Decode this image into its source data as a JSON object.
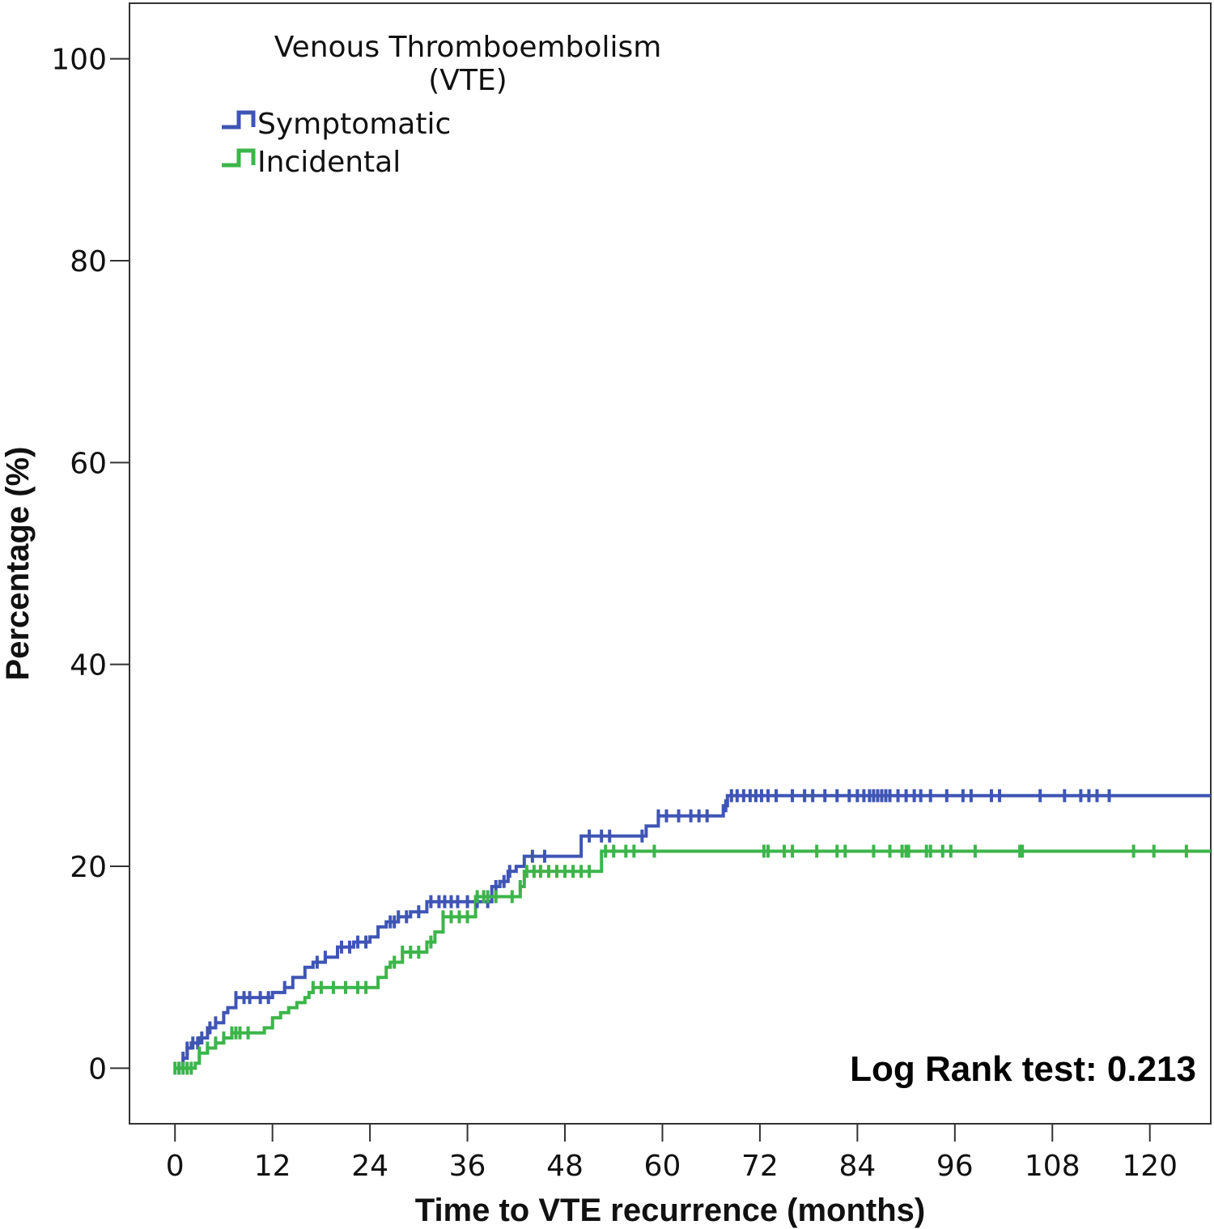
{
  "chart_data": {
    "type": "line",
    "style": "step",
    "title": "",
    "xlabel": "Time to VTE recurrence (months)",
    "ylabel": "Percentage (%)",
    "xlim": [
      -5.6,
      127.5
    ],
    "ylim": [
      -5.5,
      105.5
    ],
    "xticks": [
      0,
      12,
      24,
      36,
      48,
      60,
      72,
      84,
      96,
      108,
      120
    ],
    "yticks": [
      0,
      20,
      40,
      60,
      80,
      100
    ],
    "grid": false,
    "legend": {
      "title_line1": "Venous Thromboembolism",
      "title_line2": "(VTE)",
      "position": "top-left",
      "entries": [
        "Symptomatic",
        "Incidental"
      ]
    },
    "annotation": "Log Rank test: 0.213",
    "series": [
      {
        "name": "Symptomatic",
        "color": "#3f55b5",
        "x": [
          0,
          1,
          1.5,
          2,
          3,
          4,
          5,
          6,
          6.5,
          7.5,
          10,
          12,
          13.5,
          14.5,
          16,
          17,
          18.5,
          20,
          21,
          22,
          24,
          25,
          26,
          27.5,
          29,
          31,
          32,
          38,
          39,
          40,
          41,
          42,
          43,
          48.5,
          50,
          54.5,
          58,
          59.5,
          66.5,
          67.5,
          68,
          127.5
        ],
        "y": [
          0,
          1,
          2,
          2.5,
          3,
          4,
          4.5,
          5.5,
          6,
          7,
          7,
          7.5,
          8,
          9,
          10,
          10.5,
          11,
          12,
          12,
          12.5,
          13,
          14,
          14.5,
          15,
          15.5,
          16.5,
          16.5,
          16.5,
          18,
          18.5,
          19.5,
          20,
          21,
          21,
          23,
          23,
          24,
          25,
          25,
          26,
          27,
          27
        ]
      },
      {
        "name": "Incidental",
        "color": "#3cb54a",
        "x": [
          0,
          2.5,
          3,
          4,
          5,
          6,
          7,
          9,
          11,
          12,
          13,
          14,
          15,
          16,
          16.5,
          17,
          24,
          25,
          26,
          26.5,
          28,
          31,
          32,
          33,
          36.5,
          37,
          41.5,
          42.5,
          43,
          52,
          52.5,
          127.5
        ],
        "y": [
          0,
          0.5,
          1.5,
          2,
          2.5,
          3,
          3.5,
          3.5,
          4,
          5,
          5.5,
          6,
          6.5,
          7,
          7.5,
          8,
          8,
          9,
          10,
          10.5,
          11.5,
          12.5,
          13.5,
          15,
          15,
          17,
          17,
          18,
          19.5,
          19.5,
          21.5,
          21.5
        ]
      }
    ],
    "censored": [
      {
        "series": "Symptomatic",
        "x": [
          0.5,
          1,
          1.5,
          2.2,
          2.8,
          3.3,
          4.3,
          5,
          7.5,
          8.5,
          9.2,
          10.5,
          11.5,
          13.5,
          17.5,
          18.5,
          20.5,
          21.5,
          22.5,
          23.5,
          26.5,
          27,
          27.5,
          28.5,
          30,
          31.5,
          32.5,
          33.2,
          34,
          34.8,
          36,
          37.2,
          38.5,
          39.5,
          40.5,
          41.2,
          44,
          45.5,
          51,
          52.5,
          53.5,
          57.5,
          59.5,
          60.5,
          62,
          63.5,
          64.5,
          65.5,
          67.8,
          68.5,
          69.2,
          70,
          70.8,
          71.5,
          72.2,
          73,
          74,
          76,
          77.5,
          78.5,
          80,
          81.5,
          83,
          84,
          84.8,
          85.5,
          86,
          86.5,
          87,
          87.5,
          88,
          89,
          90,
          91,
          91.8,
          93,
          95,
          97,
          98,
          100.5,
          101.5,
          106.5,
          109.5,
          111.5,
          112.5,
          113.5,
          115
        ]
      },
      {
        "series": "Incidental",
        "x": [
          0,
          0.5,
          1,
          1.5,
          2,
          3,
          4,
          5,
          6,
          7,
          7.5,
          8,
          9,
          17,
          18,
          19.5,
          21,
          22.5,
          23.5,
          27,
          28,
          29,
          30,
          31.5,
          33,
          34,
          35,
          36,
          37.2,
          38,
          38.5,
          39.5,
          41.5,
          42.5,
          43.3,
          44.2,
          45,
          46,
          47,
          48,
          49,
          50,
          51,
          53,
          54,
          55.5,
          56.5,
          59,
          72.5,
          73,
          75,
          76,
          79,
          81.5,
          82.5,
          86,
          88,
          89.5,
          90,
          90.3,
          92.5,
          93,
          94.5,
          95.5,
          98.5,
          104,
          104.3,
          118,
          120.5,
          124.5
        ]
      }
    ]
  }
}
